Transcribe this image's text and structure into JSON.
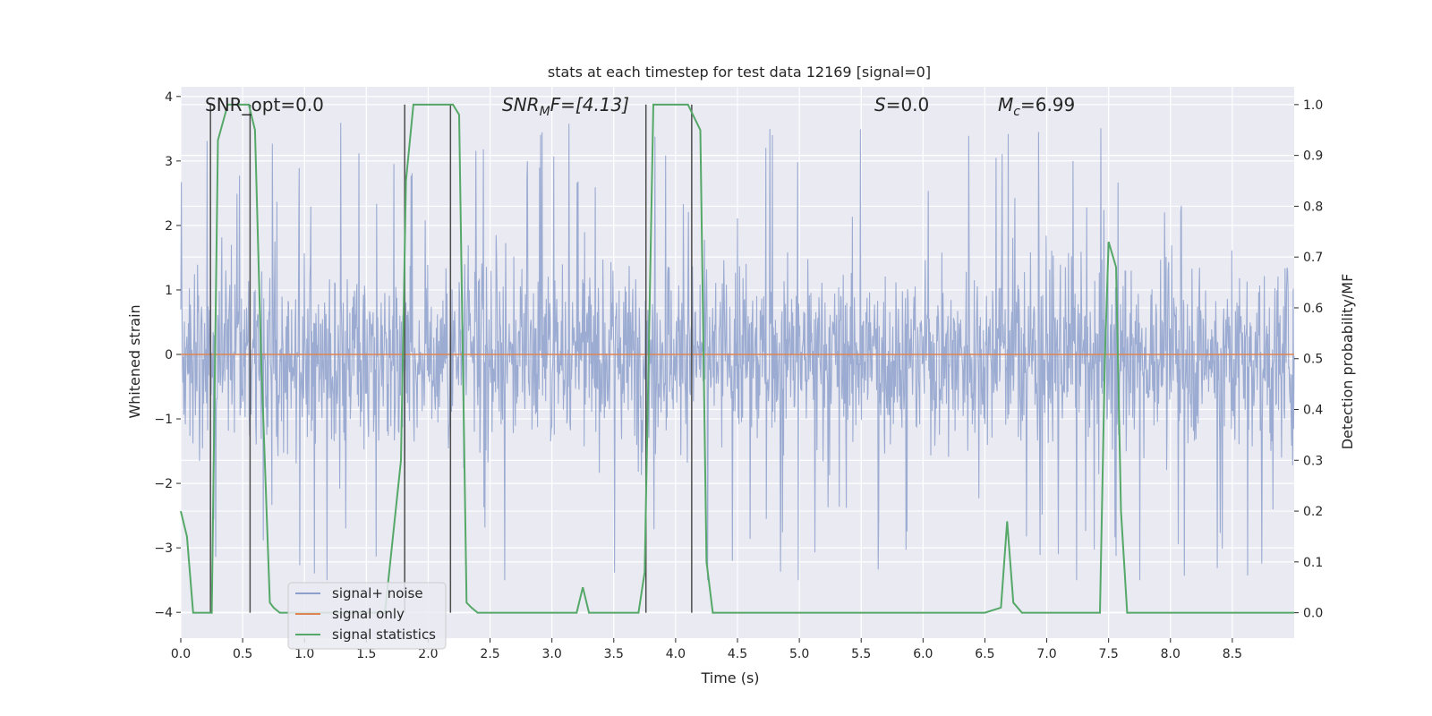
{
  "chart_data": {
    "type": "line",
    "title": "stats at each timestep for test data 12169 [signal=0]",
    "xlabel": "Time (s)",
    "ylabel": "Whitened strain",
    "ylabel_right": "Detection probability/MF",
    "xlim": [
      0.0,
      9.0
    ],
    "ylim": [
      -4.4,
      4.15
    ],
    "ylim_right": [
      -0.05,
      1.035
    ],
    "grid": true,
    "xticks": [
      0.0,
      0.5,
      1.0,
      1.5,
      2.0,
      2.5,
      3.0,
      3.5,
      4.0,
      4.5,
      5.0,
      5.5,
      6.0,
      6.5,
      7.0,
      7.5,
      8.0,
      8.5
    ],
    "xtick_labels": [
      "0.0",
      "0.5",
      "1.0",
      "1.5",
      "2.0",
      "2.5",
      "3.0",
      "3.5",
      "4.0",
      "4.5",
      "5.0",
      "5.5",
      "6.0",
      "6.5",
      "7.0",
      "7.5",
      "8.0",
      "8.5"
    ],
    "yticks": [
      -4,
      -3,
      -2,
      -1,
      0,
      1,
      2,
      3,
      4
    ],
    "ytick_labels": [
      "−4",
      "−3",
      "−2",
      "−1",
      "0",
      "1",
      "2",
      "3",
      "4"
    ],
    "yticks_right": [
      0.0,
      0.1,
      0.2,
      0.3,
      0.4,
      0.5,
      0.6,
      0.7,
      0.8,
      0.9,
      1.0
    ],
    "ytick_labels_right": [
      "0.0",
      "0.1",
      "0.2",
      "0.3",
      "0.4",
      "0.5",
      "0.6",
      "0.7",
      "0.8",
      "0.9",
      "1.0"
    ],
    "annotations": {
      "snr_opt": "SNR_opt=0.0",
      "snr_mf_prefix": "SNR",
      "snr_mf_sub": "M",
      "snr_mf_suffix": "F=[4.13]",
      "s_symbol": "S",
      "s_value": "=0.0",
      "mc_symbol": "M",
      "mc_sub": "c",
      "mc_value": "=6.99"
    },
    "legend": {
      "placement": "lower-left",
      "items": [
        "signal+ noise",
        "signal only",
        "signal statistics"
      ]
    },
    "colors": {
      "signal_noise": "#8da0cb",
      "signal_only": "#dd8452",
      "statistics": "#55a868",
      "markers": "#4d4d4d",
      "background": "#eaeaf2",
      "grid": "#ffffff"
    },
    "series": [
      {
        "name": "signal+ noise",
        "axis": "left",
        "style": "noise",
        "x_range": [
          0.0,
          9.0
        ],
        "envelope_typical": 1.6,
        "envelope_peak_max": 3.8,
        "envelope_peak_min": -3.5
      },
      {
        "name": "signal only",
        "axis": "left",
        "x": [
          0.0,
          9.0
        ],
        "values": [
          0.0,
          0.0
        ]
      },
      {
        "name": "signal statistics",
        "axis": "right",
        "x": [
          0.0,
          0.05,
          0.1,
          0.25,
          0.3,
          0.38,
          0.48,
          0.55,
          0.6,
          0.65,
          0.72,
          0.75,
          0.8,
          0.9,
          1.5,
          1.65,
          1.78,
          1.82,
          1.88,
          2.2,
          2.25,
          2.31,
          2.35,
          2.4,
          3.0,
          3.2,
          3.25,
          3.3,
          3.5,
          3.7,
          3.75,
          3.82,
          4.1,
          4.2,
          4.25,
          4.3,
          5.0,
          6.5,
          6.63,
          6.68,
          6.73,
          6.8,
          7.0,
          7.43,
          7.47,
          7.5,
          7.56,
          7.6,
          7.65,
          7.9,
          8.5,
          9.0
        ],
        "values": [
          0.2,
          0.15,
          0.0,
          0.0,
          0.93,
          1.0,
          1.0,
          1.0,
          0.95,
          0.5,
          0.02,
          0.01,
          0.0,
          0.0,
          0.0,
          0.0,
          0.3,
          0.85,
          1.0,
          1.0,
          0.98,
          0.02,
          0.01,
          0.0,
          0.0,
          0.0,
          0.05,
          0.0,
          0.0,
          0.0,
          0.08,
          1.0,
          1.0,
          0.95,
          0.1,
          0.0,
          0.0,
          0.0,
          0.01,
          0.18,
          0.02,
          0.0,
          0.0,
          0.0,
          0.5,
          0.73,
          0.68,
          0.2,
          0.0,
          0.0,
          0.0,
          0.0
        ]
      }
    ],
    "marker_lines": [
      0.24,
      0.56,
      1.81,
      2.18,
      3.76,
      4.13
    ]
  }
}
